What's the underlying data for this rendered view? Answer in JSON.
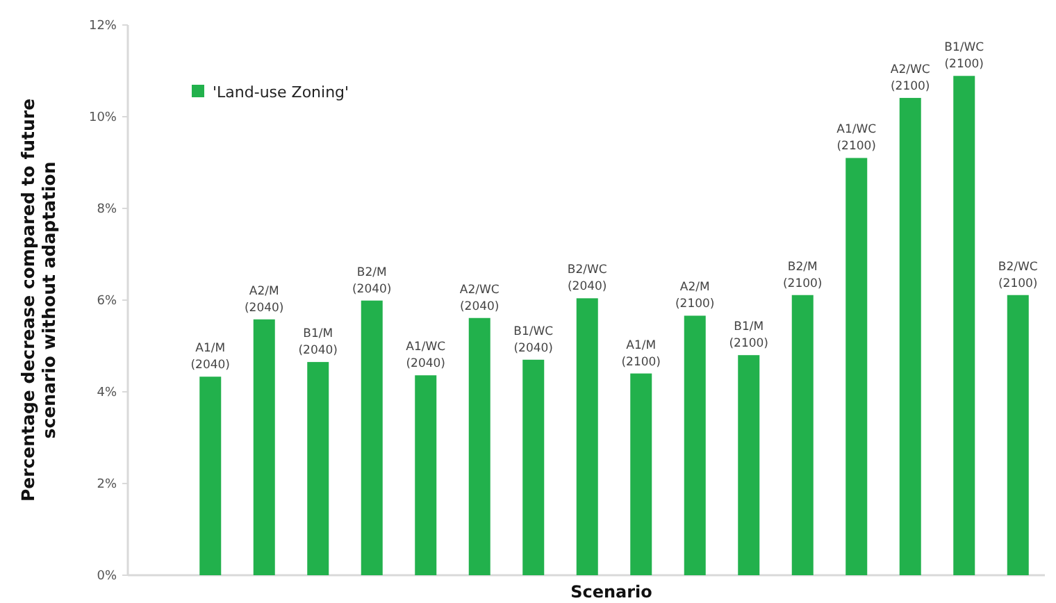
{
  "chart_data": {
    "type": "bar",
    "categories": [
      "A1/M (2040)",
      "A2/M (2040)",
      "B1/M (2040)",
      "B2/M (2040)",
      "A1/WC (2040)",
      "A2/WC (2040)",
      "B1/WC (2040)",
      "B2/WC (2040)",
      "A1/M (2100)",
      "A2/M (2100)",
      "B1/M (2100)",
      "B2/M (2100)",
      "A1/WC (2100)",
      "A2/WC (2100)",
      "B1/WC (2100)",
      "B2/WC (2100)"
    ],
    "series": [
      {
        "name": "'Land-use Zoning'",
        "color": "#22b14c",
        "values": [
          4.33,
          5.58,
          4.65,
          5.99,
          4.36,
          5.61,
          4.7,
          6.04,
          4.4,
          5.66,
          4.8,
          6.11,
          9.1,
          10.41,
          10.89,
          6.11
        ]
      }
    ],
    "xlabel": "Scenario",
    "ylabel": "Percentage decrease compared to future scenario without adaptation",
    "ylim": [
      0,
      12
    ],
    "yticks": [
      {
        "value": 0,
        "label": "0%"
      },
      {
        "value": 2,
        "label": "2%"
      },
      {
        "value": 4,
        "label": "4%"
      },
      {
        "value": 6,
        "label": "6%"
      },
      {
        "value": 8,
        "label": "8%"
      },
      {
        "value": 10,
        "label": "10%"
      },
      {
        "value": 12,
        "label": "12%"
      }
    ],
    "legend": "top left",
    "grid": false
  }
}
